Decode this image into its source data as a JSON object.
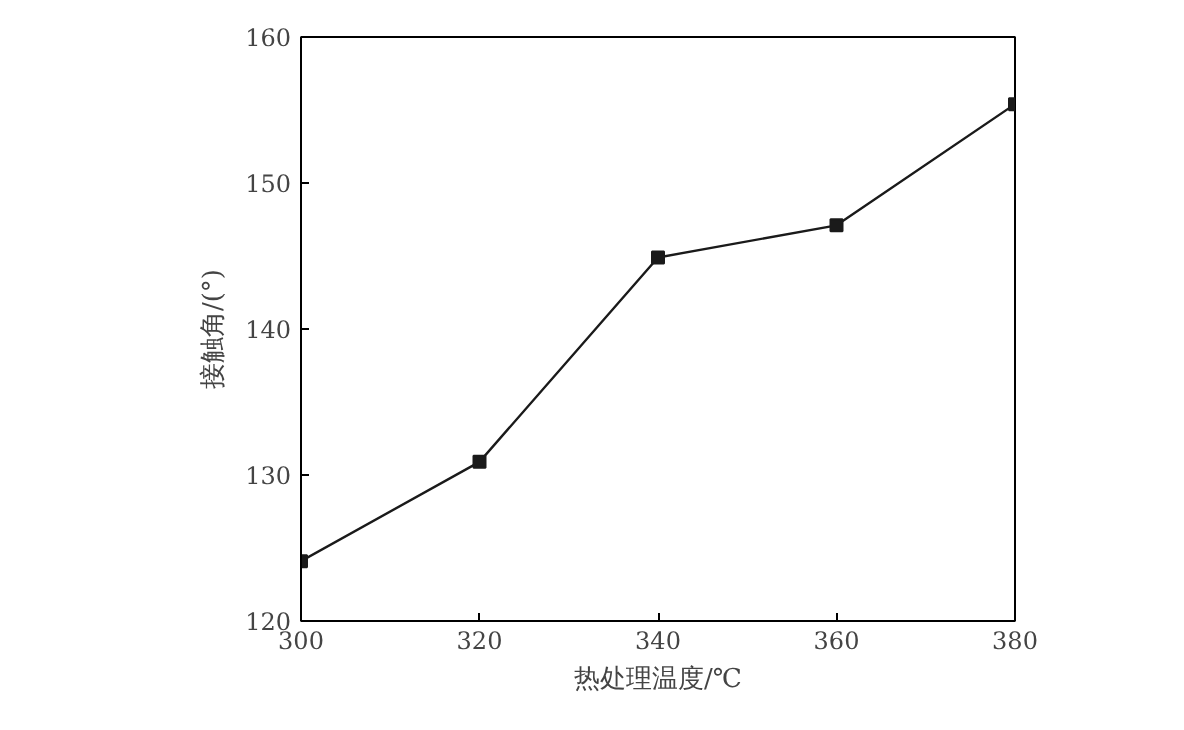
{
  "chart_data": {
    "type": "line",
    "xlabel": "热处理温度/℃",
    "ylabel": "接触角/(°)",
    "x": [
      300,
      320,
      340,
      360,
      380
    ],
    "series": [
      {
        "color": "#1a1a1a",
        "values": [
          124.1,
          130.9,
          144.9,
          147.1,
          155.4
        ]
      }
    ],
    "xlim": [
      300,
      380
    ],
    "xticks": [
      300,
      320,
      340,
      360,
      380
    ],
    "ylim": [
      120,
      160
    ],
    "yticks": [
      120,
      130,
      140,
      150,
      160
    ],
    "grid": false,
    "marker": "square",
    "line_style": "solid"
  }
}
